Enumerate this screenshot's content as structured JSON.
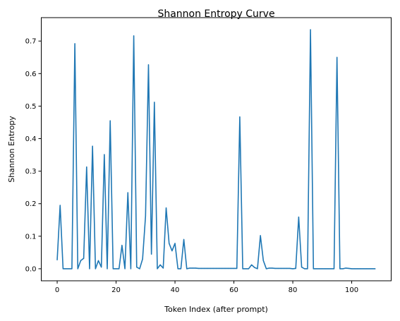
{
  "chart_data": {
    "type": "line",
    "title": "Shannon Entropy Curve",
    "xlabel": "Token Index (after prompt)",
    "ylabel": "Shannon Entropy",
    "xlim": [
      -5.4,
      113.4
    ],
    "ylim": [
      -0.037,
      0.772
    ],
    "xticks": [
      0,
      20,
      40,
      60,
      80,
      100
    ],
    "yticks": [
      0.0,
      0.1,
      0.2,
      0.3,
      0.4,
      0.5,
      0.6,
      0.7
    ],
    "xtick_labels": [
      "0",
      "20",
      "40",
      "60",
      "80",
      "100"
    ],
    "ytick_labels": [
      "0.0",
      "0.1",
      "0.2",
      "0.3",
      "0.4",
      "0.5",
      "0.6",
      "0.7"
    ],
    "grid": false,
    "series": [
      {
        "color": "#1f77b4",
        "x": [
          0,
          1,
          2,
          3,
          4,
          5,
          6,
          7,
          8,
          9,
          10,
          11,
          12,
          13,
          14,
          15,
          16,
          17,
          18,
          19,
          20,
          21,
          22,
          23,
          24,
          25,
          26,
          27,
          28,
          29,
          30,
          31,
          32,
          33,
          34,
          35,
          36,
          37,
          38,
          39,
          40,
          41,
          42,
          43,
          44,
          45,
          46,
          47,
          48,
          49,
          50,
          51,
          52,
          53,
          54,
          55,
          56,
          57,
          58,
          59,
          60,
          61,
          62,
          63,
          64,
          65,
          66,
          67,
          68,
          69,
          70,
          71,
          72,
          73,
          74,
          75,
          76,
          77,
          78,
          79,
          80,
          81,
          82,
          83,
          84,
          85,
          86,
          87,
          88,
          89,
          90,
          91,
          92,
          93,
          94,
          95,
          96,
          97,
          98,
          99,
          100,
          101,
          102,
          103,
          104,
          105,
          106,
          107,
          108
        ],
        "y": [
          0.027,
          0.195,
          0.0,
          0.0,
          0.0,
          0.0,
          0.692,
          0.0,
          0.025,
          0.032,
          0.313,
          0.0,
          0.377,
          0.0,
          0.025,
          0.005,
          0.351,
          0.0,
          0.455,
          0.0,
          0.0,
          0.0,
          0.072,
          0.0,
          0.234,
          0.0,
          0.716,
          0.005,
          0.0,
          0.03,
          0.162,
          0.627,
          0.045,
          0.512,
          0.0,
          0.012,
          0.002,
          0.187,
          0.078,
          0.055,
          0.078,
          0.0,
          0.0,
          0.09,
          0.0,
          0.002,
          0.002,
          0.002,
          0.001,
          0.001,
          0.001,
          0.001,
          0.001,
          0.001,
          0.001,
          0.001,
          0.001,
          0.001,
          0.001,
          0.001,
          0.001,
          0.001,
          0.467,
          0.0,
          0.0,
          0.0,
          0.012,
          0.004,
          0.0,
          0.102,
          0.025,
          0.0,
          0.002,
          0.002,
          0.001,
          0.001,
          0.001,
          0.001,
          0.001,
          0.001,
          0.0,
          0.001,
          0.159,
          0.005,
          0.0,
          0.0,
          0.735,
          0.0,
          0.0,
          0.0,
          0.0,
          0.0,
          0.0,
          0.0,
          0.0,
          0.65,
          0.0,
          0.0,
          0.002,
          0.001,
          0.0,
          0.0,
          0.0,
          0.0,
          0.0,
          0.0,
          0.0,
          0.0,
          0.0
        ]
      }
    ]
  }
}
